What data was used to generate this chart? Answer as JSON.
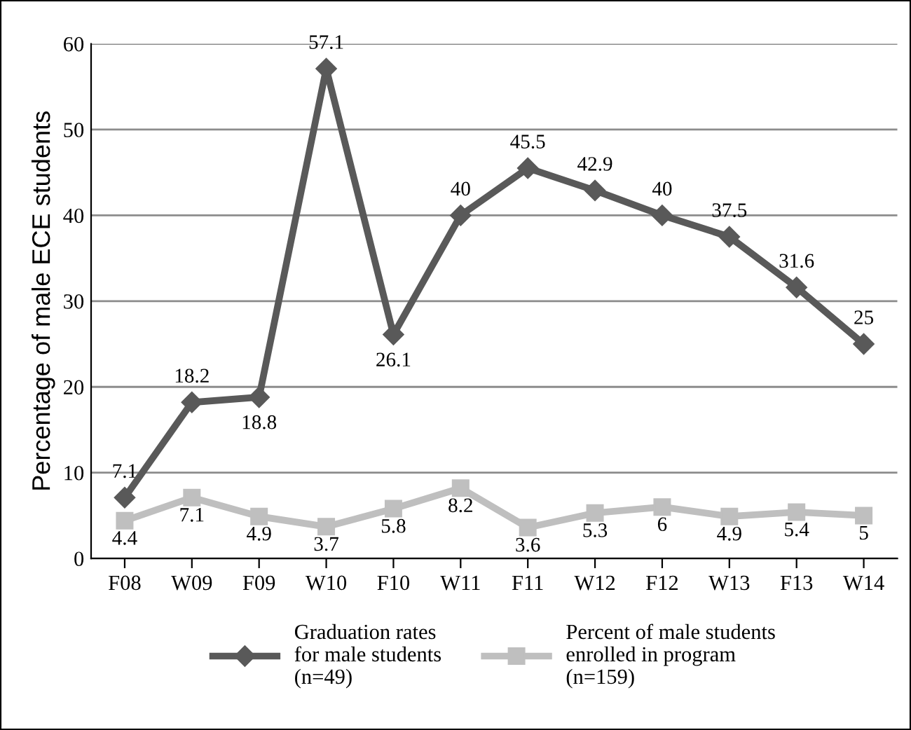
{
  "chart_data": {
    "type": "line",
    "ylabel": "Percentage of male ECE students",
    "categories": [
      "F08",
      "W09",
      "F09",
      "W10",
      "F10",
      "W11",
      "F11",
      "W12",
      "F12",
      "W13",
      "F13",
      "W14"
    ],
    "series": [
      {
        "name": "Graduation rates\nfor male students\n(n=49)",
        "color": "#595959",
        "marker": "diamond",
        "values": [
          7.1,
          18.2,
          18.8,
          57.1,
          26.1,
          40,
          45.5,
          42.9,
          40,
          37.5,
          31.6,
          25
        ]
      },
      {
        "name": "Percent of male students\nenrolled in program\n(n=159)",
        "color": "#bfbfbf",
        "marker": "square",
        "values": [
          4.4,
          7.1,
          4.9,
          3.7,
          5.8,
          8.2,
          3.6,
          5.3,
          6,
          4.9,
          5.4,
          5
        ]
      }
    ],
    "ylim": [
      0,
      60
    ],
    "yticks": [
      0,
      10,
      20,
      30,
      40,
      50,
      60
    ],
    "grid": "y",
    "legend": "bottom",
    "data_labels": true
  }
}
